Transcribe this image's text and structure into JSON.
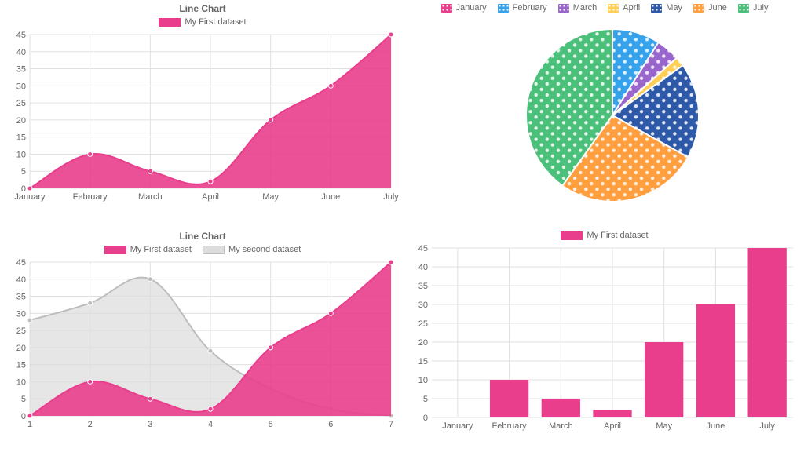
{
  "area_chart": {
    "type": "area",
    "title": "Line Chart",
    "legend_label": "My First dataset",
    "categories": [
      "January",
      "February",
      "March",
      "April",
      "May",
      "June",
      "July"
    ],
    "values": [
      0,
      10,
      5,
      2,
      20,
      30,
      45
    ],
    "ylim": [
      0,
      45
    ],
    "ytick_step": 5,
    "fill_color": "#e83e8c",
    "line_color": "#e83e8c",
    "point_color": "#e83e8c",
    "background_color": "#ffffff",
    "grid_color": "#e0e0e0",
    "label_fontsize": 11,
    "title_fontsize": 12
  },
  "pie_chart": {
    "type": "pie",
    "legend": [
      "January",
      "February",
      "March",
      "April",
      "May",
      "June",
      "July"
    ],
    "values": [
      0,
      10,
      5,
      2,
      20,
      30,
      45
    ],
    "colors": [
      "#e83e8c",
      "#36a2eb",
      "#9966cc",
      "#ffce56",
      "#2e59a9",
      "#ff9f40",
      "#4bc07a"
    ],
    "pattern": "dots",
    "dot_color": "#ffffff",
    "background_color": "#ffffff"
  },
  "multi_area_chart": {
    "type": "area",
    "title": "Line Chart",
    "legends": [
      "My First dataset",
      "My second dataset"
    ],
    "categories": [
      "1",
      "2",
      "3",
      "4",
      "5",
      "6",
      "7"
    ],
    "series": [
      {
        "label": "My First dataset",
        "values": [
          0,
          10,
          5,
          2,
          20,
          30,
          45
        ],
        "fill": "#e83e8c",
        "line": "#e83e8c"
      },
      {
        "label": "My second dataset",
        "values": [
          28,
          33,
          40,
          19,
          8,
          2,
          0
        ],
        "fill": "#dcdcdc",
        "line": "#bdbdbd"
      }
    ],
    "ylim": [
      0,
      45
    ],
    "ytick_step": 5,
    "grid_color": "#e0e0e0",
    "label_fontsize": 11,
    "title_fontsize": 12
  },
  "bar_chart": {
    "type": "bar",
    "legend_label": "My First dataset",
    "categories": [
      "January",
      "February",
      "March",
      "April",
      "May",
      "June",
      "July"
    ],
    "values": [
      0,
      10,
      5,
      2,
      20,
      30,
      45
    ],
    "ylim": [
      0,
      45
    ],
    "ytick_step": 5,
    "bar_color": "#e83e8c",
    "grid_color": "#e0e0e0",
    "bar_width_ratio": 0.75,
    "label_fontsize": 11
  }
}
